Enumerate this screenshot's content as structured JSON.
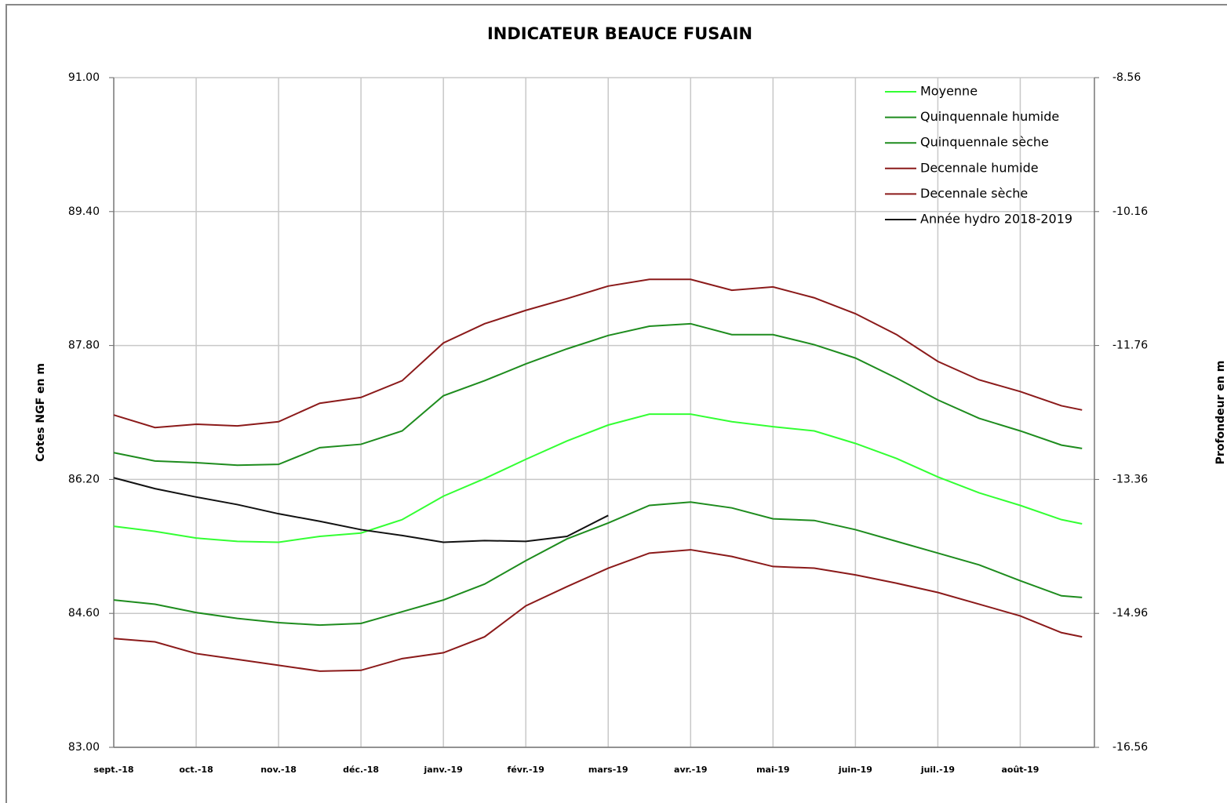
{
  "chart_data": {
    "type": "line",
    "title": "INDICATEUR BEAUCE FUSAIN",
    "y_label": "Cotes NGF en m",
    "y2_label": "Profondeur en m",
    "categories": [
      "sept.-18",
      "oct.-18",
      "nov.-18",
      "déc.-18",
      "janv.-19",
      "févr.-19",
      "mars-19",
      "avr.-19",
      "mai-19",
      "juin-19",
      "juil.-19",
      "août-19"
    ],
    "x": [
      0,
      0.5,
      1,
      1.5,
      2,
      2.5,
      3,
      3.5,
      4,
      4.5,
      5,
      5.5,
      6,
      6.5,
      7,
      7.5,
      8,
      8.5,
      9,
      9.5,
      10,
      10.5,
      11,
      11.5,
      11.75
    ],
    "xlim": [
      0,
      11.9
    ],
    "ylim": [
      83,
      91
    ],
    "yticks": [
      {
        "value": 83,
        "label": "83.00"
      },
      {
        "value": 84.6,
        "label": "84.60"
      },
      {
        "value": 86.2,
        "label": "86.20"
      },
      {
        "value": 87.8,
        "label": "87.80"
      },
      {
        "value": 89.4,
        "label": "89.40"
      },
      {
        "value": 91,
        "label": "91.00"
      }
    ],
    "y2lim": [
      -16.56,
      -8.56
    ],
    "y2ticks": [
      -16.56,
      -14.96,
      -13.36,
      -11.76,
      -10.16,
      -8.56
    ],
    "grid": true,
    "legend": "top-right",
    "series": [
      {
        "name": "Moyenne",
        "color": "#33ff33",
        "values": [
          85.64,
          85.58,
          85.5,
          85.46,
          85.45,
          85.52,
          85.56,
          85.72,
          86.0,
          86.21,
          86.44,
          86.66,
          86.85,
          86.98,
          86.98,
          86.89,
          86.83,
          86.78,
          86.63,
          86.45,
          86.23,
          86.04,
          85.89,
          85.72,
          85.67
        ]
      },
      {
        "name": "Quinquennale humide",
        "color": "#1e8c1e",
        "values": [
          86.52,
          86.42,
          86.4,
          86.37,
          86.38,
          86.58,
          86.62,
          86.78,
          87.2,
          87.38,
          87.58,
          87.76,
          87.92,
          88.03,
          88.06,
          87.93,
          87.93,
          87.81,
          87.65,
          87.41,
          87.15,
          86.93,
          86.78,
          86.61,
          86.57
        ]
      },
      {
        "name": "Quinquennale sèche",
        "color": "#1e8c1e",
        "values": [
          84.76,
          84.71,
          84.61,
          84.54,
          84.49,
          84.46,
          84.48,
          84.62,
          84.76,
          84.95,
          85.23,
          85.49,
          85.68,
          85.89,
          85.93,
          85.86,
          85.73,
          85.71,
          85.6,
          85.46,
          85.32,
          85.18,
          84.99,
          84.81,
          84.79
        ]
      },
      {
        "name": "Decennale humide",
        "color": "#8b1a1a",
        "values": [
          86.97,
          86.82,
          86.86,
          86.84,
          86.89,
          87.11,
          87.18,
          87.38,
          87.83,
          88.06,
          88.22,
          88.36,
          88.51,
          88.59,
          88.59,
          88.46,
          88.5,
          88.37,
          88.18,
          87.93,
          87.61,
          87.39,
          87.25,
          87.08,
          87.03
        ]
      },
      {
        "name": "Decennale sèche",
        "color": "#8b1a1a",
        "values": [
          84.3,
          84.26,
          84.12,
          84.05,
          83.98,
          83.91,
          83.92,
          84.06,
          84.13,
          84.32,
          84.69,
          84.92,
          85.14,
          85.32,
          85.36,
          85.28,
          85.16,
          85.14,
          85.06,
          84.96,
          84.85,
          84.71,
          84.57,
          84.37,
          84.32
        ]
      },
      {
        "name": "Année hydro 2018-2019",
        "color": "#111111",
        "values": [
          86.22,
          86.09,
          85.99,
          85.9,
          85.79,
          85.7,
          85.6,
          85.53,
          85.45,
          85.47,
          85.46,
          85.52,
          85.77,
          null,
          null,
          null,
          null,
          null,
          null,
          null,
          null,
          null,
          null,
          null,
          null
        ]
      }
    ]
  }
}
